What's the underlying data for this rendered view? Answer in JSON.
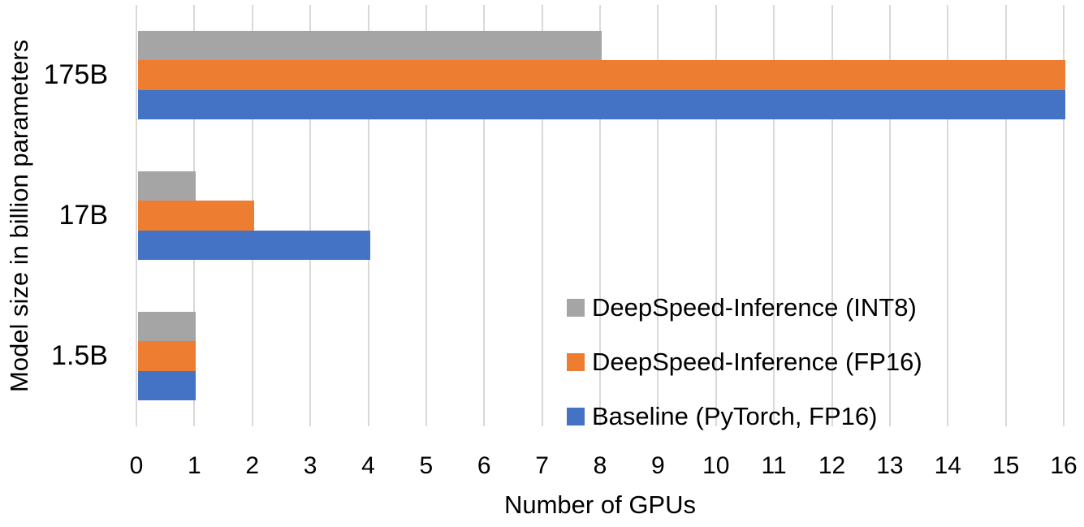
{
  "chart_data": {
    "type": "bar",
    "orientation": "horizontal",
    "xlabel": "Number of GPUs",
    "ylabel": "Model size in billion parameters",
    "categories": [
      "175B",
      "17B",
      "1.5B"
    ],
    "series": [
      {
        "name": "DeepSpeed-Inference (INT8)",
        "color": "#A5A5A5",
        "values": [
          8,
          1,
          1
        ]
      },
      {
        "name": "DeepSpeed-Inference (FP16)",
        "color": "#ED7D31",
        "values": [
          16,
          2,
          1
        ]
      },
      {
        "name": "Baseline (PyTorch, FP16)",
        "color": "#4472C4",
        "values": [
          16,
          4,
          1
        ]
      }
    ],
    "xlim": [
      0,
      16
    ],
    "xticks": [
      0,
      1,
      2,
      3,
      4,
      5,
      6,
      7,
      8,
      9,
      10,
      11,
      12,
      13,
      14,
      15,
      16
    ],
    "grid": true,
    "gridline_color": "#D9D9D9",
    "legend_position": "inside-right-bottom",
    "text_color": "#000000",
    "background_color": "#FFFFFF"
  }
}
